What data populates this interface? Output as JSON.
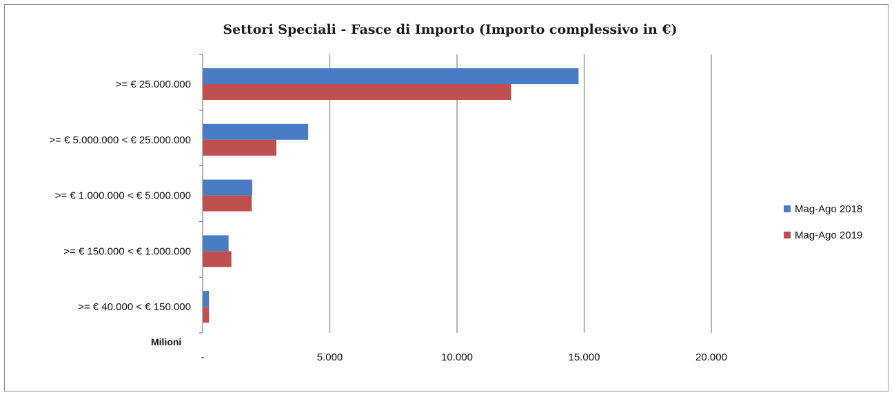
{
  "chart_data": {
    "type": "bar",
    "orientation": "horizontal",
    "title": "Settori Speciali - Fasce di Importo (Importo complessivo in €)",
    "unit_label": "Milioni",
    "categories": [
      ">= € 25.000.000",
      ">= € 5.000.000 < € 25.000.000",
      ">= € 1.000.000 < € 5.000.000",
      ">= € 150.000 < € 1.000.000",
      ">= € 40.000 < € 150.000"
    ],
    "series": [
      {
        "name": "Mag-Ago 2018",
        "color": "#4a7cc4",
        "values": [
          14780,
          4150,
          1950,
          1020,
          250
        ]
      },
      {
        "name": "Mag-Ago 2019",
        "color": "#c0504d",
        "values": [
          12130,
          2900,
          1930,
          1130,
          250
        ]
      }
    ],
    "xlim": [
      0,
      20000
    ],
    "xticks": [
      0,
      5000,
      10000,
      15000,
      20000
    ],
    "xtick_labels": [
      "-",
      "5.000",
      "10.000",
      "15.000",
      "20.000"
    ],
    "grid": "vertical",
    "legend_position": "right"
  }
}
